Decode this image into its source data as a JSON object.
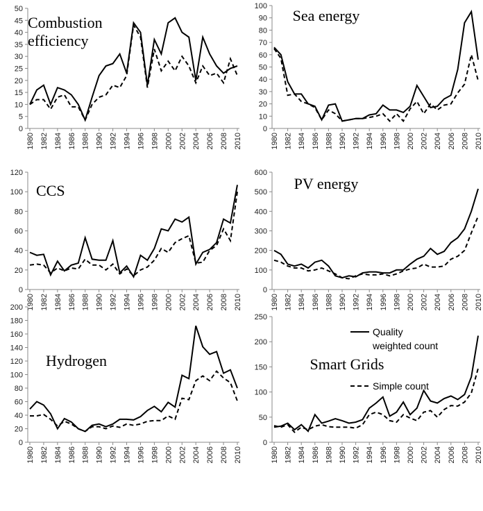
{
  "chart_data": [
    {
      "type": "line",
      "title": "Combustion efficiency",
      "x": [
        1980,
        1981,
        1982,
        1983,
        1984,
        1985,
        1986,
        1987,
        1988,
        1989,
        1990,
        1991,
        1992,
        1993,
        1994,
        1995,
        1996,
        1997,
        1998,
        1999,
        2000,
        2001,
        2002,
        2003,
        2004,
        2005,
        2006,
        2007,
        2008,
        2009,
        2010
      ],
      "xlim": [
        1980,
        2010
      ],
      "xticks": [
        1980,
        1982,
        1984,
        1986,
        1988,
        1990,
        1992,
        1994,
        1996,
        1998,
        2000,
        2002,
        2004,
        2006,
        2008,
        2010
      ],
      "ylim": [
        0,
        50
      ],
      "yticks": [
        0,
        5,
        10,
        15,
        20,
        25,
        30,
        35,
        40,
        45,
        50
      ],
      "series": [
        {
          "color": "#000000",
          "linestyle": "solid",
          "values": [
            10,
            16,
            18,
            10,
            17,
            16,
            14,
            10,
            3.5,
            13,
            22,
            26,
            27,
            31,
            23,
            44,
            40,
            18,
            37,
            31,
            44,
            46,
            40,
            38,
            20,
            38,
            31,
            26,
            23,
            25,
            26
          ]
        },
        {
          "color": "#000000",
          "linestyle": "dashed",
          "values": [
            10,
            12,
            12,
            8,
            13,
            14,
            9,
            9,
            3.5,
            10,
            13,
            14,
            18,
            17,
            22,
            43,
            38,
            17,
            33,
            24,
            28,
            24,
            30,
            26,
            19,
            26,
            22,
            23,
            19,
            29,
            22
          ]
        }
      ]
    },
    {
      "type": "line",
      "title": "Sea energy",
      "x": [
        1980,
        1981,
        1982,
        1983,
        1984,
        1985,
        1986,
        1987,
        1988,
        1989,
        1990,
        1991,
        1992,
        1993,
        1994,
        1995,
        1996,
        1997,
        1998,
        1999,
        2000,
        2001,
        2002,
        2003,
        2004,
        2005,
        2006,
        2007,
        2008,
        2009,
        2010
      ],
      "xlim": [
        1980,
        2010
      ],
      "xticks": [
        1980,
        1982,
        1984,
        1986,
        1988,
        1990,
        1992,
        1994,
        1996,
        1998,
        2000,
        2002,
        2004,
        2006,
        2008,
        2010
      ],
      "ylim": [
        0,
        100
      ],
      "yticks": [
        0,
        10,
        20,
        30,
        40,
        50,
        60,
        70,
        80,
        90,
        100
      ],
      "series": [
        {
          "color": "#000000",
          "linestyle": "solid",
          "values": [
            66,
            60,
            38,
            28,
            28,
            20,
            18,
            7,
            19,
            20,
            6,
            7,
            8,
            8,
            11,
            12,
            19,
            15,
            15,
            13,
            18,
            35,
            26,
            17,
            18,
            24,
            27,
            48,
            86,
            95,
            56
          ]
        },
        {
          "color": "#000000",
          "linestyle": "dashed",
          "values": [
            65,
            57,
            27,
            28,
            22,
            20,
            17,
            7,
            15,
            12,
            6,
            7,
            8,
            8,
            9,
            10,
            12,
            6,
            12,
            6,
            16,
            22,
            12,
            20,
            15,
            19,
            20,
            29,
            36,
            60,
            39
          ]
        }
      ]
    },
    {
      "type": "line",
      "title": "CCS",
      "x": [
        1980,
        1981,
        1982,
        1983,
        1984,
        1985,
        1986,
        1987,
        1988,
        1989,
        1990,
        1991,
        1992,
        1993,
        1994,
        1995,
        1996,
        1997,
        1998,
        1999,
        2000,
        2001,
        2002,
        2003,
        2004,
        2005,
        2006,
        2007,
        2008,
        2009,
        2010
      ],
      "xlim": [
        1980,
        2010
      ],
      "xticks": [
        1980,
        1982,
        1984,
        1986,
        1988,
        1990,
        1992,
        1994,
        1996,
        1998,
        2000,
        2002,
        2004,
        2006,
        2008,
        2010
      ],
      "ylim": [
        0,
        120
      ],
      "yticks": [
        0,
        20,
        40,
        60,
        80,
        100,
        120
      ],
      "series": [
        {
          "color": "#000000",
          "linestyle": "solid",
          "values": [
            38,
            35,
            36,
            15,
            29,
            19,
            25,
            27,
            53,
            31,
            30,
            30,
            50,
            17,
            24,
            13,
            35,
            30,
            42,
            62,
            60,
            72,
            69,
            74,
            26,
            38,
            41,
            48,
            72,
            68,
            107
          ]
        },
        {
          "color": "#000000",
          "linestyle": "dashed",
          "values": [
            25,
            26,
            25,
            17,
            22,
            19,
            22,
            21,
            31,
            25,
            25,
            20,
            26,
            16,
            21,
            14,
            20,
            23,
            30,
            42,
            38,
            48,
            52,
            55,
            27,
            28,
            40,
            45,
            62,
            50,
            100
          ]
        }
      ]
    },
    {
      "type": "line",
      "title": "PV energy",
      "x": [
        1980,
        1981,
        1982,
        1983,
        1984,
        1985,
        1986,
        1987,
        1988,
        1989,
        1990,
        1991,
        1992,
        1993,
        1994,
        1995,
        1996,
        1997,
        1998,
        1999,
        2000,
        2001,
        2002,
        2003,
        2004,
        2005,
        2006,
        2007,
        2008,
        2009,
        2010
      ],
      "xlim": [
        1980,
        2010
      ],
      "xticks": [
        1980,
        1982,
        1984,
        1986,
        1988,
        1990,
        1992,
        1994,
        1996,
        1998,
        2000,
        2002,
        2004,
        2006,
        2008,
        2010
      ],
      "ylim": [
        0,
        600
      ],
      "yticks": [
        0,
        100,
        200,
        300,
        400,
        500,
        600
      ],
      "series": [
        {
          "color": "#000000",
          "linestyle": "solid",
          "values": [
            200,
            180,
            130,
            120,
            130,
            110,
            140,
            150,
            120,
            70,
            60,
            70,
            65,
            85,
            90,
            90,
            85,
            85,
            100,
            100,
            130,
            155,
            170,
            210,
            180,
            195,
            240,
            265,
            310,
            400,
            515
          ]
        },
        {
          "color": "#000000",
          "linestyle": "dashed",
          "values": [
            150,
            140,
            120,
            110,
            110,
            95,
            100,
            110,
            95,
            80,
            60,
            55,
            70,
            80,
            75,
            75,
            80,
            70,
            80,
            95,
            105,
            110,
            130,
            115,
            115,
            120,
            155,
            170,
            200,
            290,
            375
          ]
        }
      ]
    },
    {
      "type": "line",
      "title": "Hydrogen",
      "x": [
        1980,
        1981,
        1982,
        1983,
        1984,
        1985,
        1986,
        1987,
        1988,
        1989,
        1990,
        1991,
        1992,
        1993,
        1994,
        1995,
        1996,
        1997,
        1998,
        1999,
        2000,
        2001,
        2002,
        2003,
        2004,
        2005,
        2006,
        2007,
        2008,
        2009,
        2010
      ],
      "xlim": [
        1980,
        2010
      ],
      "xticks": [
        1980,
        1982,
        1984,
        1986,
        1988,
        1990,
        1992,
        1994,
        1996,
        1998,
        2000,
        2002,
        2004,
        2006,
        2008,
        2010
      ],
      "ylim": [
        0,
        200
      ],
      "yticks": [
        0,
        20,
        40,
        60,
        80,
        100,
        120,
        140,
        160,
        180,
        200
      ],
      "series": [
        {
          "color": "#000000",
          "linestyle": "solid",
          "values": [
            49,
            60,
            55,
            42,
            20,
            35,
            30,
            20,
            16,
            25,
            27,
            23,
            27,
            34,
            34,
            33,
            38,
            47,
            53,
            45,
            59,
            52,
            99,
            94,
            172,
            141,
            130,
            134,
            102,
            107,
            80
          ]
        },
        {
          "color": "#000000",
          "linestyle": "dashed",
          "values": [
            39,
            39,
            41,
            34,
            24,
            31,
            27,
            20,
            16,
            23,
            23,
            20,
            24,
            22,
            27,
            25,
            27,
            31,
            32,
            32,
            39,
            34,
            65,
            63,
            91,
            98,
            91,
            105,
            95,
            88,
            61
          ]
        }
      ]
    },
    {
      "type": "line",
      "title": "Smart Grids",
      "legend": "upper right",
      "x": [
        1980,
        1981,
        1982,
        1983,
        1984,
        1985,
        1986,
        1987,
        1988,
        1989,
        1990,
        1991,
        1992,
        1993,
        1994,
        1995,
        1996,
        1997,
        1998,
        1999,
        2000,
        2001,
        2002,
        2003,
        2004,
        2005,
        2006,
        2007,
        2008,
        2009,
        2010
      ],
      "xlim": [
        1980,
        2010
      ],
      "xticks": [
        1980,
        1982,
        1984,
        1986,
        1988,
        1990,
        1992,
        1994,
        1996,
        1998,
        2000,
        2002,
        2004,
        2006,
        2008,
        2010
      ],
      "ylim": [
        0,
        250
      ],
      "yticks": [
        0,
        50,
        100,
        150,
        200,
        250
      ],
      "series": [
        {
          "name": "Quality weighted count",
          "color": "#000000",
          "linestyle": "solid",
          "values": [
            30,
            32,
            38,
            25,
            35,
            22,
            55,
            38,
            42,
            47,
            43,
            38,
            40,
            45,
            68,
            78,
            90,
            52,
            60,
            80,
            55,
            68,
            103,
            82,
            78,
            87,
            92,
            85,
            95,
            130,
            212
          ]
        },
        {
          "name": "Simple count",
          "color": "#000000",
          "linestyle": "dashed",
          "values": [
            33,
            30,
            35,
            20,
            30,
            25,
            32,
            35,
            31,
            30,
            30,
            30,
            28,
            35,
            55,
            60,
            55,
            43,
            40,
            55,
            48,
            43,
            60,
            63,
            50,
            65,
            73,
            72,
            80,
            98,
            147
          ]
        }
      ]
    }
  ]
}
